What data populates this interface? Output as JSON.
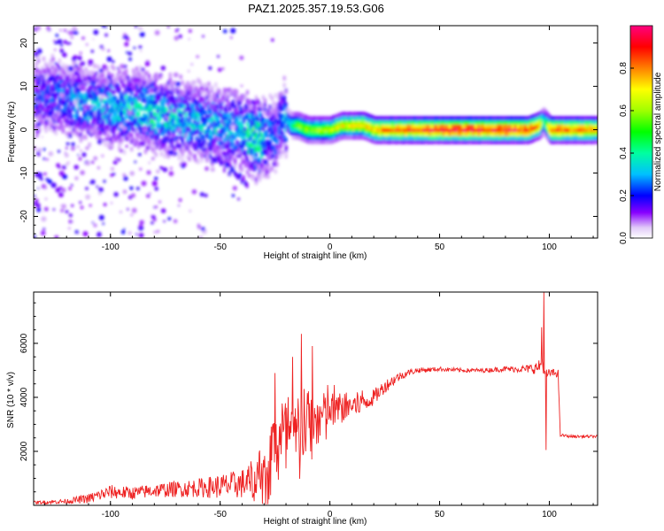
{
  "title": "PAZ1.2025.357.19.53.G06",
  "chart_data": [
    {
      "type": "heatmap",
      "xlabel": "Height of straight line (km)",
      "ylabel": "Frequency (Hz)",
      "xlim": [
        -135,
        122
      ],
      "ylim": [
        -25,
        24
      ],
      "xticks": [
        -100,
        -50,
        0,
        50,
        100
      ],
      "xtick_labels": [
        "-100",
        "-50",
        "0",
        "50",
        "100"
      ],
      "yticks": [
        -20,
        -10,
        0,
        10,
        20
      ],
      "ytick_labels": [
        "-20",
        "-10",
        "0",
        "10",
        "20"
      ],
      "colorbar": {
        "label": "Normalized spectral amplitude",
        "range": [
          0,
          1
        ],
        "ticks": [
          0.0,
          0.2,
          0.4,
          0.6,
          0.8
        ],
        "tick_labels": [
          "0.0",
          "0.2",
          "0.4",
          "0.6",
          "0.8"
        ]
      },
      "ridge": {
        "x": [
          -132,
          -120,
          -110,
          -100,
          -90,
          -80,
          -70,
          -60,
          -50,
          -40,
          -35,
          -30,
          -25,
          -22,
          -20,
          -18,
          -15,
          -10,
          -5,
          0,
          5,
          10,
          15,
          20,
          30,
          40,
          50,
          60,
          70,
          80,
          90,
          95,
          97,
          100,
          110,
          122
        ],
        "freq": [
          8,
          7,
          6,
          5,
          5,
          4,
          3,
          2,
          1,
          0,
          -2,
          -2,
          -1,
          3,
          2,
          1,
          1,
          0,
          0,
          0,
          1,
          1,
          1,
          0,
          0,
          0,
          0,
          0,
          0,
          0,
          0,
          1,
          2,
          0,
          0,
          0
        ],
        "amplitude": [
          0.2,
          0.25,
          0.3,
          0.3,
          0.3,
          0.35,
          0.3,
          0.3,
          0.3,
          0.3,
          0.45,
          0.3,
          0.2,
          0.25,
          0.3,
          0.4,
          0.55,
          0.6,
          0.6,
          0.65,
          0.7,
          0.7,
          0.75,
          0.8,
          0.85,
          0.9,
          0.92,
          0.95,
          0.95,
          0.95,
          0.9,
          0.85,
          0.4,
          0.9,
          0.85,
          0.8
        ]
      }
    },
    {
      "type": "line",
      "xlabel": "Height of straight line (km)",
      "ylabel": "SNR (10 * v/v)",
      "xlim": [
        -135,
        122
      ],
      "ylim": [
        0,
        7900
      ],
      "xticks": [
        -100,
        -50,
        0,
        50,
        100
      ],
      "xtick_labels": [
        "-100",
        "-50",
        "0",
        "50",
        "100"
      ],
      "yticks": [
        2000,
        4000,
        6000
      ],
      "ytick_labels": [
        "2000",
        "4000",
        "6000"
      ],
      "color": "#ee2222",
      "series": [
        {
          "name": "SNR",
          "x": [
            -135,
            -120,
            -110,
            -100,
            -90,
            -80,
            -70,
            -60,
            -50,
            -40,
            -35,
            -30,
            -25,
            -20,
            -15,
            -12,
            -10,
            -5,
            0,
            5,
            10,
            15,
            20,
            25,
            30,
            35,
            40,
            50,
            60,
            70,
            80,
            90,
            95,
            97,
            98,
            100,
            104,
            105,
            110,
            122
          ],
          "mean": [
            100,
            150,
            250,
            500,
            450,
            550,
            600,
            650,
            700,
            800,
            900,
            1500,
            2200,
            2600,
            2500,
            2800,
            3000,
            3200,
            3500,
            3600,
            3700,
            3800,
            4000,
            4400,
            4700,
            4900,
            5000,
            5050,
            5000,
            5000,
            5050,
            5050,
            5100,
            5300,
            4800,
            4900,
            4900,
            2600,
            2550,
            2550
          ],
          "noise": [
            60,
            90,
            180,
            260,
            240,
            260,
            300,
            350,
            450,
            550,
            800,
            1100,
            1300,
            1400,
            1300,
            1400,
            1200,
            1000,
            700,
            600,
            500,
            400,
            300,
            250,
            200,
            120,
            100,
            80,
            80,
            80,
            100,
            150,
            250,
            300,
            250,
            150,
            150,
            60,
            50,
            50
          ],
          "spikes": [
            {
              "x": -13,
              "y": 6350
            },
            {
              "x": -17,
              "y": 5500
            },
            {
              "x": -8,
              "y": 5900
            },
            {
              "x": -25,
              "y": 4900
            },
            {
              "x": 97.5,
              "y": 7900
            },
            {
              "x": 98.5,
              "y": 2050
            },
            {
              "x": 96.5,
              "y": 6600
            }
          ]
        }
      ]
    }
  ]
}
